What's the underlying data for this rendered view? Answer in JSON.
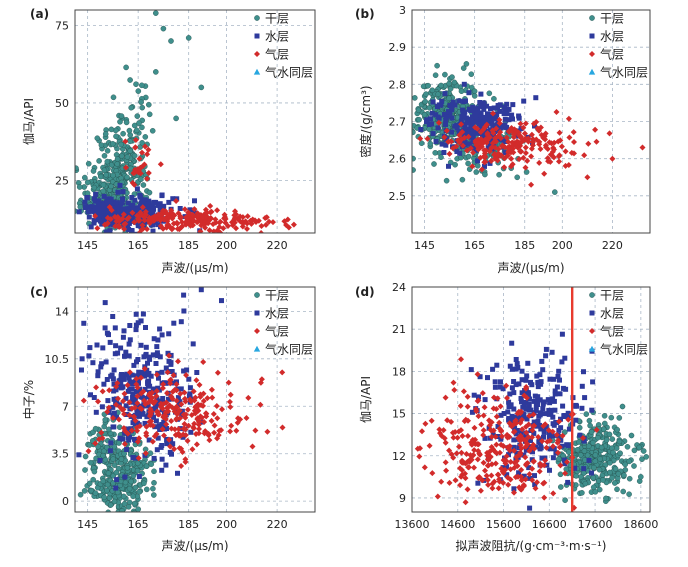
{
  "figure": {
    "series_names": [
      "干层",
      "水层",
      "气层",
      "气水同层"
    ],
    "series_colors": [
      "#3f8f8c",
      "#2e3a9c",
      "#d22b2b",
      "#28a7e0"
    ]
  },
  "chart_data": [
    {
      "panel": "(a)",
      "type": "scatter",
      "xlabel": "声波/(μs/m)",
      "ylabel": "伽马/API",
      "xlim": [
        140,
        235
      ],
      "ylim": [
        8,
        80
      ],
      "xticks": [
        145,
        165,
        185,
        200,
        220
      ],
      "yticks": [
        25,
        50,
        75
      ],
      "grid": true,
      "legend": "top-right",
      "series": [
        {
          "name": "干层",
          "clusters": [
            {
              "cx": 158,
              "cy": 25,
              "sx": 5,
              "sy": 9,
              "n": 300
            },
            {
              "cx": 150,
              "cy": 18,
              "sx": 5,
              "sy": 4,
              "n": 90
            },
            {
              "cx": 165,
              "cy": 45,
              "sx": 4,
              "sy": 8,
              "n": 25
            }
          ],
          "points": [
            [
              172,
              79
            ],
            [
              178,
              70
            ],
            [
              175,
              74
            ],
            [
              185,
              71
            ],
            [
              180,
              45
            ],
            [
              172,
              60
            ],
            [
              190,
              55
            ]
          ]
        },
        {
          "name": "水层",
          "clusters": [
            {
              "cx": 163,
              "cy": 15,
              "sx": 9,
              "sy": 3,
              "n": 200
            },
            {
              "cx": 152,
              "cy": 15,
              "sx": 4,
              "sy": 3,
              "n": 60
            }
          ]
        },
        {
          "name": "气层",
          "clusters": [
            {
              "cx": 180,
              "cy": 12,
              "sx": 15,
              "sy": 2,
              "n": 180
            },
            {
              "cx": 208,
              "cy": 11.5,
              "sx": 10,
              "sy": 1,
              "n": 40
            },
            {
              "cx": 166,
              "cy": 30,
              "sx": 3,
              "sy": 4,
              "n": 25
            }
          ]
        }
      ]
    },
    {
      "panel": "(b)",
      "type": "scatter",
      "xlabel": "声波/(μs/m)",
      "ylabel": "密度/(g/cm³)",
      "xlim": [
        140,
        235
      ],
      "ylim": [
        2.4,
        3.0
      ],
      "xticks": [
        145,
        165,
        185,
        200,
        220
      ],
      "yticks": [
        2.5,
        2.6,
        2.7,
        2.8,
        2.9,
        3.0
      ],
      "grid": true,
      "legend": "top-right",
      "series": [
        {
          "name": "干层",
          "clusters": [
            {
              "cx": 153,
              "cy": 2.72,
              "sx": 7,
              "sy": 0.05,
              "n": 280
            },
            {
              "cx": 168,
              "cy": 2.64,
              "sx": 9,
              "sy": 0.04,
              "n": 120
            }
          ],
          "points": [
            [
              150,
              2.85
            ],
            [
              197,
              2.51
            ],
            [
              182,
              2.55
            ]
          ]
        },
        {
          "name": "水层",
          "clusters": [
            {
              "cx": 165,
              "cy": 2.69,
              "sx": 9,
              "sy": 0.035,
              "n": 260
            }
          ]
        },
        {
          "name": "气层",
          "clusters": [
            {
              "cx": 178,
              "cy": 2.64,
              "sx": 14,
              "sy": 0.03,
              "n": 220
            }
          ],
          "points": [
            [
              232,
              2.63
            ],
            [
              220,
              2.6
            ],
            [
              210,
              2.55
            ]
          ]
        }
      ]
    },
    {
      "panel": "(c)",
      "type": "scatter",
      "xlabel": "声波/(μs/m)",
      "ylabel": "中子/%",
      "xlim": [
        140,
        235
      ],
      "ylim": [
        -0.8,
        15.8
      ],
      "xticks": [
        145,
        165,
        185,
        200,
        220
      ],
      "yticks": [
        0,
        3.5,
        7.0,
        10.5,
        14.0
      ],
      "grid": true,
      "legend": "top-right",
      "series": [
        {
          "name": "干层",
          "clusters": [
            {
              "cx": 158,
              "cy": 1.8,
              "sx": 6,
              "sy": 1.8,
              "n": 320
            },
            {
              "cx": 150,
              "cy": 4,
              "sx": 3,
              "sy": 1.2,
              "n": 30
            }
          ]
        },
        {
          "name": "水层",
          "clusters": [
            {
              "cx": 165,
              "cy": 8.0,
              "sx": 10,
              "sy": 2.6,
              "n": 320
            }
          ],
          "points": [
            [
              190,
              15.6
            ],
            [
              183,
              15.2
            ],
            [
              198,
              14.8
            ]
          ]
        },
        {
          "name": "气层",
          "clusters": [
            {
              "cx": 180,
              "cy": 6.5,
              "sx": 15,
              "sy": 1.6,
              "n": 250
            }
          ],
          "points": [
            [
              222,
              9.5
            ],
            [
              214,
              9.0
            ]
          ]
        }
      ]
    },
    {
      "panel": "(d)",
      "type": "scatter",
      "xlabel": "拟声波阻抗/(g·cm⁻³·m·s⁻¹)",
      "ylabel": "伽马/API",
      "xlim": [
        13600,
        18800
      ],
      "ylim": [
        8,
        24
      ],
      "xticks": [
        13600,
        14600,
        15600,
        16600,
        17600,
        18600
      ],
      "yticks": [
        9,
        12,
        15,
        18,
        21,
        24
      ],
      "grid": true,
      "legend": "top-right",
      "annotations": [
        {
          "type": "vline",
          "x": 17100,
          "color": "#e83b2e"
        }
      ],
      "series": [
        {
          "name": "干层",
          "clusters": [
            {
              "cx": 17600,
              "cy": 11.8,
              "sx": 400,
              "sy": 1.3,
              "n": 330
            }
          ],
          "points": [
            [
              18200,
              15.5
            ],
            [
              18600,
              10.5
            ]
          ]
        },
        {
          "name": "水层",
          "clusters": [
            {
              "cx": 16250,
              "cy": 14.5,
              "sx": 550,
              "sy": 2.3,
              "n": 260
            }
          ]
        },
        {
          "name": "气层",
          "clusters": [
            {
              "cx": 15400,
              "cy": 12.5,
              "sx": 800,
              "sy": 2.0,
              "n": 300
            }
          ]
        }
      ]
    }
  ]
}
